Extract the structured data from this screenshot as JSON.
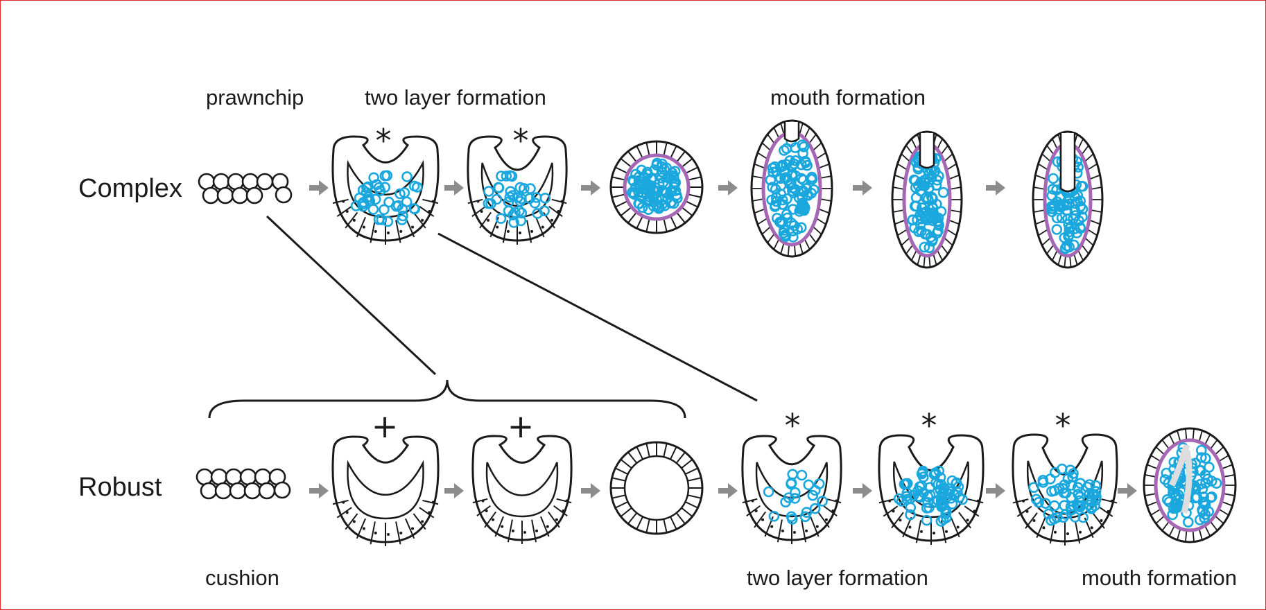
{
  "colors": {
    "cell_outline": "#1a1a1a",
    "inner_cells": "#1aa7dd",
    "basement_layer": "#a567b3",
    "arrow": "#8c8c8c",
    "border": "#e8262a",
    "cleft": "#dddddd"
  },
  "rows": {
    "complex": {
      "label": "Complex",
      "stage_labels": {
        "prawnchip": "prawnchip",
        "two_layer": "two layer formation",
        "mouth": "mouth formation"
      }
    },
    "robust": {
      "label": "Robust",
      "stage_labels": {
        "cushion": "cushion",
        "two_layer": "two layer formation",
        "mouth": "mouth formation"
      }
    }
  },
  "marks": {
    "asterisk": "*",
    "plus": "+"
  }
}
